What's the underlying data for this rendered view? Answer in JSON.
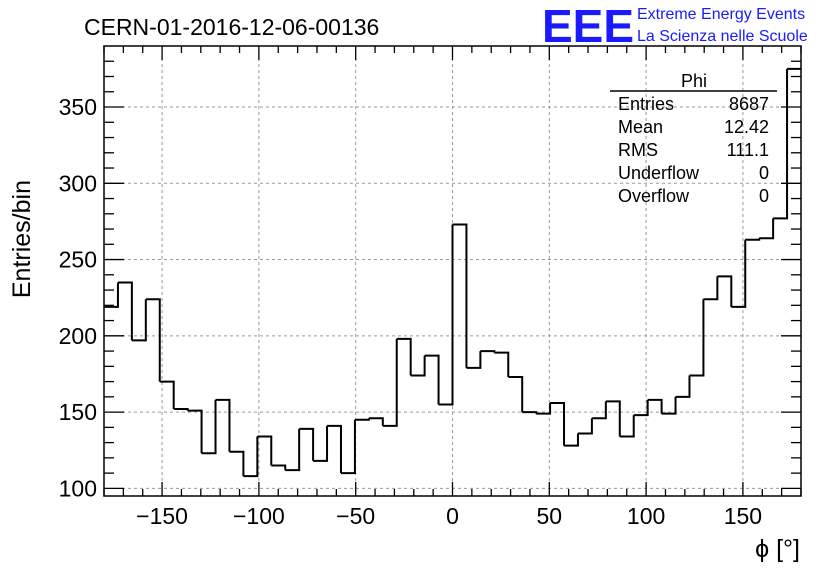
{
  "chart_data": {
    "type": "bar",
    "title": "CERN-01-2016-12-06-00136",
    "xlabel": "ϕ [°]",
    "ylabel": "Entries/bin",
    "xlim": [
      -180,
      180
    ],
    "ylim": [
      95,
      390
    ],
    "grid": true,
    "bin_edges": [
      -180,
      -172.8,
      -165.6,
      -158.4,
      -151.2,
      -144,
      -136.8,
      -129.6,
      -122.4,
      -115.2,
      -108,
      -100.8,
      -93.6,
      -86.4,
      -79.2,
      -72,
      -64.8,
      -57.6,
      -50.4,
      -43.2,
      -36,
      -28.8,
      -21.6,
      -14.4,
      -7.2,
      0,
      7.2,
      14.4,
      21.6,
      28.8,
      36,
      43.2,
      50.4,
      57.6,
      64.8,
      72,
      79.2,
      86.4,
      93.6,
      100.8,
      108,
      115.2,
      122.4,
      129.6,
      136.8,
      144,
      151.2,
      158.4,
      165.6,
      172.8,
      180
    ],
    "values": [
      219,
      235,
      197,
      224,
      170,
      152,
      151,
      123,
      158,
      124,
      108,
      134,
      115,
      112,
      139,
      118,
      141,
      110,
      145,
      146,
      141,
      198,
      174,
      187,
      155,
      273,
      179,
      190,
      189,
      173,
      150,
      149,
      156,
      128,
      136,
      146,
      157,
      134,
      148,
      158,
      149,
      160,
      174,
      224,
      239,
      219,
      263,
      264,
      277,
      375
    ],
    "xticks": [
      -150,
      -100,
      -50,
      0,
      50,
      100,
      150
    ],
    "xtick_labels": [
      "−150",
      "−100",
      "−50",
      "0",
      "50",
      "100",
      "150"
    ],
    "yticks": [
      100,
      150,
      200,
      250,
      300,
      350
    ],
    "ytick_labels": [
      "100",
      "150",
      "200",
      "250",
      "300",
      "350"
    ],
    "stats_box": {
      "name": "Phi",
      "rows": [
        {
          "label": "Entries",
          "value": "8687"
        },
        {
          "label": "Mean",
          "value": "12.42"
        },
        {
          "label": "RMS",
          "value": "111.1"
        },
        {
          "label": "Underflow",
          "value": "0"
        },
        {
          "label": "Overflow",
          "value": "0"
        }
      ]
    },
    "logo": {
      "big": "EEE",
      "line1": "Extreme Energy Events",
      "line2": "La Scienza nelle Scuole",
      "color": "#1a1aff"
    }
  }
}
